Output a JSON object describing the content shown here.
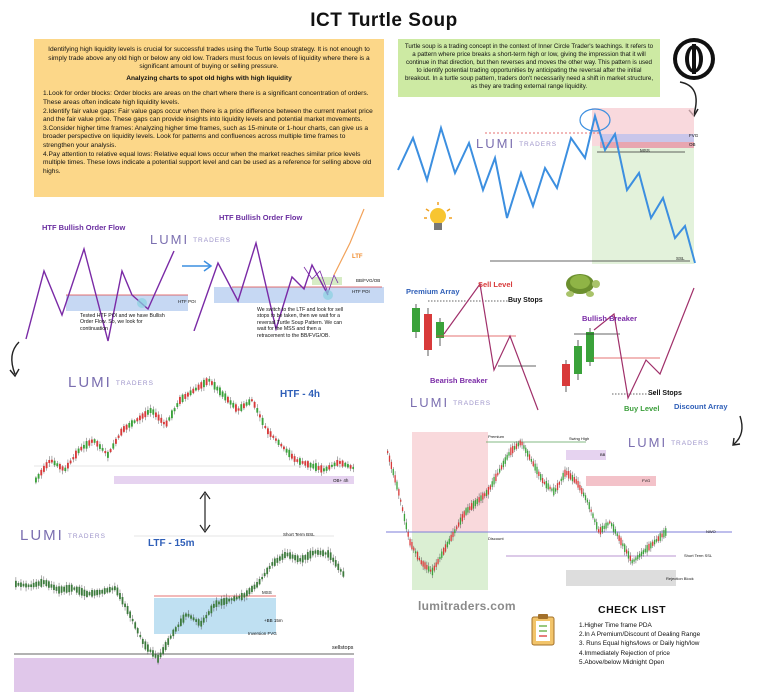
{
  "title": "ICT  Turtle Soup",
  "intro": {
    "paragraph": "Identifying high liquidity levels is crucial for successful trades using the Turtle Soup strategy. It is not enough to simply trade above any old high or below any old low. Traders must focus on levels of liquidity where there is a significant amount of buying or selling pressure.",
    "subheading": "Analyzing charts to spot old highs with high liquidity",
    "points": [
      "1.Look for order blocks: Order blocks are areas on the chart where there is a significant concentration of orders. These areas often indicate high liquidity levels.",
      "2.Identify fair value gaps: Fair value gaps occur when there is a price difference between the current market price and the fair value price. These gaps can provide insights into liquidity levels and potential market movements.",
      "3.Consider higher time frames: Analyzing higher time frames, such as 15-minute or 1-hour charts, can give us a broader perspective on liquidity levels. Look for patterns and confluences across multiple time frames to strengthen your analysis.",
      "4.Pay attention to relative equal lows: Relative equal lows occur when the market reaches similar price levels multiple times. These lows indicate a potential support level and can be used as a reference for selling above old highs."
    ]
  },
  "definition": "Turtle soup is a trading concept in the context of Inner Circle Trader's teachings. It refers to a pattern where price breaks a short-term high or low, giving the impression that it will continue in that direction, but then reverses and moves the other way. This pattern is used to identify potential trading opportunities by anticipating the reversal after the initial breakout. In a turtle soup pattern, traders don't necessarily need a shift in market structure, as they are trading external range liquidity.",
  "brand": {
    "name": "LUMI",
    "sub": "TRADERS"
  },
  "flow_diagram": {
    "left_title": "HTF Bullish Order Flow",
    "left_zone": "HTF POI",
    "left_caption": "Tested HTF POI and we have Bullish Order Flow. So, we look for continuation",
    "right_title": "HTF Bullish Order Flow",
    "right_zone": "HTF POI",
    "right_ltf": "LTF",
    "right_zone2": "BB/FVG/OB",
    "right_caption": "We switch to the LTF and look for sell stops to be taken, then we wait for a reversal Turtle Soup Pattern. We can wait for the MSS  and then a retracement to the BB/FVG/OB."
  },
  "top_right_chart": {
    "labels": [
      "FVG",
      "OB",
      "MSS",
      "SSL"
    ]
  },
  "arrays": {
    "premium": "Premium Array",
    "sell_level": "Sell Level",
    "buy_stops": "Buy Stops",
    "bearish_breaker": "Bearish Breaker",
    "bullish_breaker": "Bullish Breaker",
    "sell_stops": "Sell Stops",
    "buy_level": "Buy Level",
    "discount": "Discount Array"
  },
  "htf_chart": {
    "label": "HTF - 4h",
    "zone": "OB+ 4h"
  },
  "ltf_chart": {
    "label": "LTF - 15m",
    "labels": [
      "Short Term BSL",
      "MSS",
      "+BB 15m",
      "Inversion FVG",
      "sellstops"
    ]
  },
  "big_chart": {
    "labels": [
      "Premium",
      "Discount",
      "Swing High",
      "BB",
      "FVG",
      "NWO",
      "Short Term SSL",
      "Rejection Block"
    ]
  },
  "website": "lumitraders.com",
  "checklist": {
    "title": "CHECK LIST",
    "items": [
      "1.Higher Time frame PDA",
      "2.In A Premium/Discount of Dealing Range",
      "3. Runs Equal highs/lows or Daily high/low",
      "4.Immediately Rejection of price",
      "5.Above/below Midnight Open"
    ]
  },
  "colors": {
    "orange_box": "#fcd789",
    "green_box": "#cdeaa3",
    "purple": "#6a2ea0",
    "blue_line": "#3c8fe0",
    "bull_candle": "#3aa23a",
    "bear_candle": "#d83a3a"
  }
}
